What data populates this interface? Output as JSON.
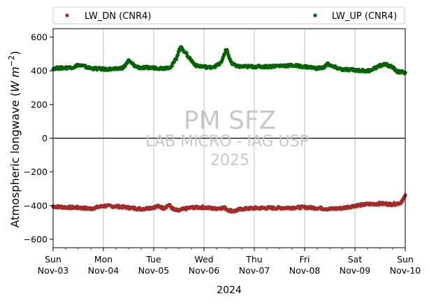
{
  "chart_data": {
    "type": "scatter",
    "title": "",
    "ylabel_plain": "Atmospheric longwave (",
    "ylabel_math": "W m",
    "ylabel_exp": "−2",
    "ylabel_close": ")",
    "xlabel": "2024",
    "x_start": "2024-11-03",
    "x_end": "2024-11-10",
    "ylim": [
      -650,
      650
    ],
    "yticks": [
      -600,
      -400,
      -200,
      0,
      200,
      400,
      600
    ],
    "grid": "vertical",
    "legend_placement": "top",
    "xticks": [
      {
        "day": "Sun",
        "date": "Nov-03"
      },
      {
        "day": "Mon",
        "date": "Nov-04"
      },
      {
        "day": "Tue",
        "date": "Nov-05"
      },
      {
        "day": "Wed",
        "date": "Nov-06"
      },
      {
        "day": "Thu",
        "date": "Nov-07"
      },
      {
        "day": "Fri",
        "date": "Nov-08"
      },
      {
        "day": "Sat",
        "date": "Nov-09"
      },
      {
        "day": "Sun",
        "date": "Nov-10"
      }
    ],
    "watermark": [
      "PM SFZ",
      "LAB MICRO - IAG USP",
      "2025"
    ],
    "series": [
      {
        "name": "LW_DN (CNR4)",
        "color": "#a52a2a",
        "points": [
          [
            0.0,
            -405
          ],
          [
            0.25,
            -410
          ],
          [
            0.5,
            -412
          ],
          [
            0.75,
            -418
          ],
          [
            1.0,
            -402
          ],
          [
            1.25,
            -404
          ],
          [
            1.5,
            -412
          ],
          [
            1.75,
            -420
          ],
          [
            2.0,
            -410
          ],
          [
            2.1,
            -404
          ],
          [
            2.2,
            -415
          ],
          [
            2.3,
            -395
          ],
          [
            2.4,
            -425
          ],
          [
            2.5,
            -430
          ],
          [
            2.6,
            -420
          ],
          [
            2.75,
            -412
          ],
          [
            3.0,
            -410
          ],
          [
            3.2,
            -418
          ],
          [
            3.4,
            -412
          ],
          [
            3.5,
            -428
          ],
          [
            3.6,
            -432
          ],
          [
            3.75,
            -420
          ],
          [
            4.0,
            -415
          ],
          [
            4.25,
            -414
          ],
          [
            4.5,
            -414
          ],
          [
            4.75,
            -412
          ],
          [
            5.0,
            -410
          ],
          [
            5.25,
            -414
          ],
          [
            5.5,
            -420
          ],
          [
            5.75,
            -415
          ],
          [
            6.0,
            -400
          ],
          [
            6.25,
            -392
          ],
          [
            6.5,
            -388
          ],
          [
            6.75,
            -392
          ],
          [
            6.9,
            -385
          ],
          [
            7.0,
            -345
          ]
        ]
      },
      {
        "name": "LW_UP (CNR4)",
        "color": "#006400",
        "points": [
          [
            0.0,
            415
          ],
          [
            0.25,
            418
          ],
          [
            0.4,
            422
          ],
          [
            0.5,
            435
          ],
          [
            0.6,
            428
          ],
          [
            0.75,
            415
          ],
          [
            1.0,
            410
          ],
          [
            1.25,
            410
          ],
          [
            1.4,
            420
          ],
          [
            1.45,
            440
          ],
          [
            1.5,
            460
          ],
          [
            1.58,
            440
          ],
          [
            1.65,
            425
          ],
          [
            1.75,
            418
          ],
          [
            2.0,
            418
          ],
          [
            2.2,
            415
          ],
          [
            2.35,
            425
          ],
          [
            2.45,
            475
          ],
          [
            2.5,
            520
          ],
          [
            2.55,
            540
          ],
          [
            2.6,
            520
          ],
          [
            2.7,
            480
          ],
          [
            2.78,
            450
          ],
          [
            2.85,
            430
          ],
          [
            3.0,
            425
          ],
          [
            3.1,
            420
          ],
          [
            3.25,
            430
          ],
          [
            3.35,
            450
          ],
          [
            3.4,
            500
          ],
          [
            3.45,
            530
          ],
          [
            3.5,
            480
          ],
          [
            3.55,
            440
          ],
          [
            3.7,
            425
          ],
          [
            4.0,
            425
          ],
          [
            4.25,
            425
          ],
          [
            4.5,
            430
          ],
          [
            4.75,
            432
          ],
          [
            5.0,
            425
          ],
          [
            5.25,
            415
          ],
          [
            5.4,
            420
          ],
          [
            5.45,
            450
          ],
          [
            5.5,
            430
          ],
          [
            5.75,
            408
          ],
          [
            6.0,
            405
          ],
          [
            6.25,
            398
          ],
          [
            6.5,
            430
          ],
          [
            6.6,
            440
          ],
          [
            6.75,
            420
          ],
          [
            6.85,
            395
          ],
          [
            7.0,
            390
          ]
        ]
      }
    ]
  }
}
